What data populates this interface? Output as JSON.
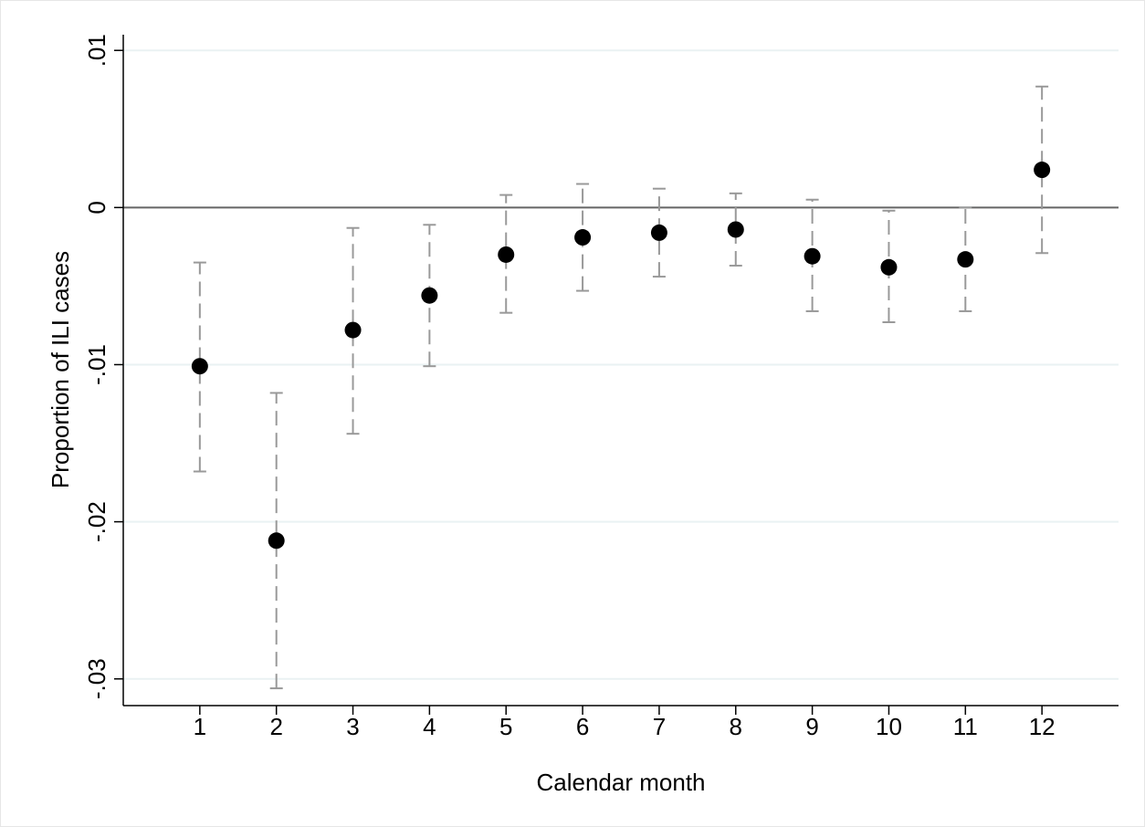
{
  "chart_data": {
    "type": "errorbar",
    "x_label": "Calendar month",
    "y_label": "Proportion of ILI cases",
    "x": [
      1,
      2,
      3,
      4,
      5,
      6,
      7,
      8,
      9,
      10,
      11,
      12
    ],
    "series": [
      {
        "color": "#000000",
        "error_color": "#999999",
        "values": [
          -0.0101,
          -0.0212,
          -0.0078,
          -0.0056,
          -0.003,
          -0.0019,
          -0.0016,
          -0.0014,
          -0.0031,
          -0.0038,
          -0.0033,
          0.0024
        ],
        "lower": [
          -0.0168,
          -0.0306,
          -0.0144,
          -0.0101,
          -0.0067,
          -0.0053,
          -0.0044,
          -0.0037,
          -0.0066,
          -0.0073,
          -0.0066,
          -0.0029
        ],
        "upper": [
          -0.0035,
          -0.0118,
          -0.0013,
          -0.0011,
          0.0008,
          0.0015,
          0.0012,
          0.0009,
          0.0005,
          -0.0002,
          0.0,
          0.0077
        ]
      }
    ],
    "xlim": [
      0,
      13
    ],
    "xticks": [
      1,
      2,
      3,
      4,
      5,
      6,
      7,
      8,
      9,
      10,
      11,
      12
    ],
    "ylim": [
      -0.0317,
      0.011
    ],
    "yticks": [
      {
        "value": 0.01,
        "label": ".01"
      },
      0,
      {
        "value": -0.01,
        "label": "-.01"
      },
      {
        "value": -0.02,
        "label": "-.02"
      },
      {
        "value": -0.03,
        "label": "-.03"
      }
    ],
    "grid": true,
    "reference_line": 0
  }
}
